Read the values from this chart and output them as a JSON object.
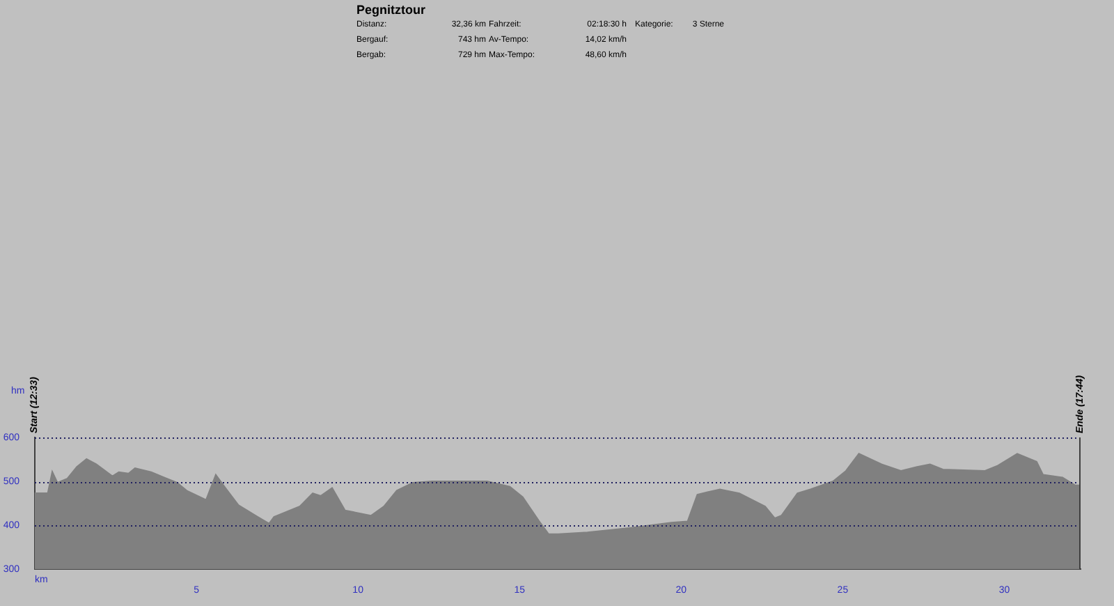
{
  "chart_data": {
    "type": "area",
    "title": "Pegnitztour",
    "annotations": [
      "Start (12:33)",
      "Ende (17:44)",
      "Distanz:",
      "32,36 km",
      "Fahrzeit:",
      "02:18:30 h",
      "Kategorie:",
      "3 Sterne",
      "Bergauf:",
      "743 hm",
      "Av-Tempo:",
      "14,02 km/h",
      "Bergab:",
      "729 hm",
      "Max-Tempo:",
      "48,60 km/h"
    ],
    "xlabel": "km",
    "ylabel": "hm",
    "series": [
      {
        "color": "#808080",
        "x": [
          0,
          0.4,
          0.54,
          0.7,
          1.0,
          1.3,
          1.6,
          1.9,
          2.4,
          2.6,
          2.9,
          3.1,
          3.6,
          4.0,
          4.4,
          4.7,
          5.3,
          5.6,
          5.9,
          6.3,
          6.9,
          7.25,
          7.4,
          8.2,
          8.6,
          8.85,
          9.2,
          9.6,
          10.4,
          10.8,
          11.2,
          11.7,
          12.3,
          14.0,
          14.7,
          15.1,
          15.6,
          15.9,
          16.2,
          17.1,
          18.4,
          19.7,
          20.2,
          20.5,
          21.2,
          21.8,
          22.6,
          22.9,
          23.1,
          23.6,
          24.0,
          24.7,
          25.1,
          25.5,
          26.2,
          26.8,
          27.3,
          27.7,
          28.1,
          29.4,
          29.8,
          30.4,
          31.0,
          31.2,
          31.8,
          32.2,
          32.36
        ],
        "values": [
          473,
          473,
          522,
          497,
          506,
          533,
          551,
          539,
          512,
          521,
          518,
          530,
          521,
          509,
          497,
          479,
          458,
          515,
          485,
          446,
          419,
          404,
          419,
          443,
          473,
          467,
          485,
          434,
          422,
          443,
          479,
          497,
          500,
          500,
          488,
          464,
          410,
          380,
          380,
          384,
          394,
          406,
          409,
          470,
          482,
          473,
          443,
          416,
          422,
          473,
          482,
          500,
          524,
          563,
          539,
          524,
          533,
          539,
          527,
          524,
          536,
          563,
          545,
          515,
          509,
          491,
          491
        ]
      }
    ],
    "xlim": [
      0,
      32.36
    ],
    "xticks": [
      {
        "value": 0,
        "label": null
      },
      5,
      10,
      15,
      20,
      25,
      30
    ],
    "ylim": [
      300,
      600
    ],
    "yticks": [
      300,
      400,
      500,
      600
    ],
    "grid": "y",
    "line_style": "dotted",
    "legend": false,
    "marker": "none"
  }
}
